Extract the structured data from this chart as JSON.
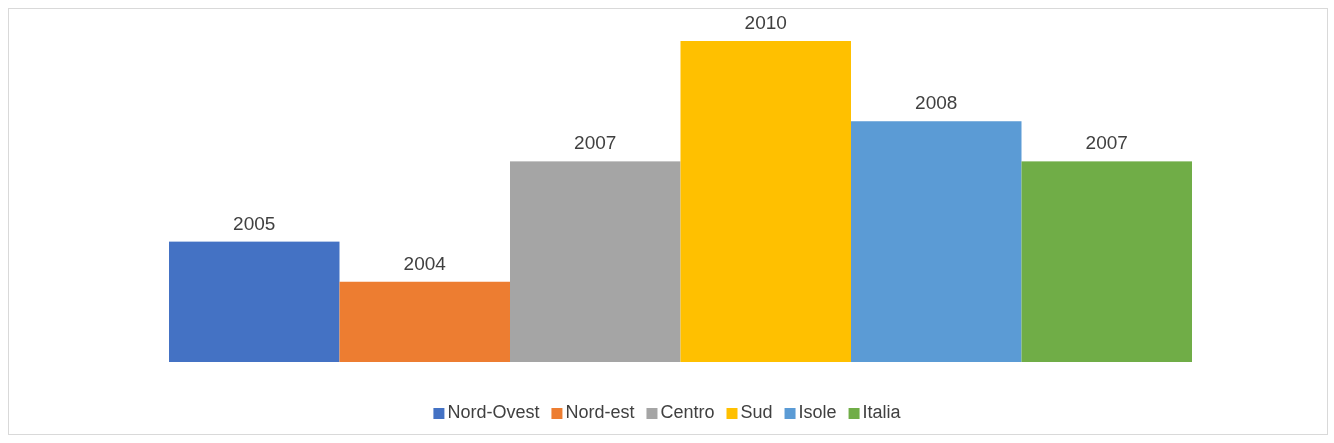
{
  "chart_data": {
    "type": "bar",
    "categories": [
      null
    ],
    "series": [
      {
        "name": "Nord-Ovest",
        "color": "#4472c4",
        "values": [
          2005
        ]
      },
      {
        "name": "Nord-est",
        "color": "#ed7d31",
        "values": [
          2004
        ]
      },
      {
        "name": "Centro",
        "color": "#a5a5a5",
        "values": [
          2007
        ]
      },
      {
        "name": "Sud",
        "color": "#ffc000",
        "values": [
          2010
        ]
      },
      {
        "name": "Isole",
        "color": "#5b9bd5",
        "values": [
          2008
        ]
      },
      {
        "name": "Italia",
        "color": "#70ad47",
        "values": [
          2007
        ]
      }
    ],
    "ylim": [
      2002,
      2010
    ],
    "data_labels": true,
    "legend": "bottom",
    "tick_labels": false
  }
}
